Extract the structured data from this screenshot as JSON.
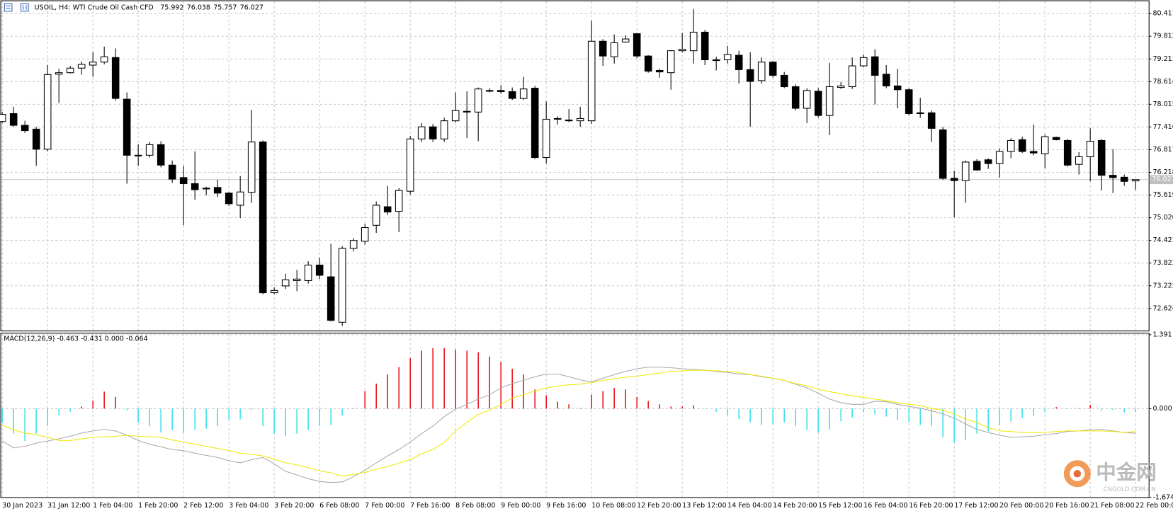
{
  "chart_data": [
    {
      "type": "candlestick",
      "title": "USOIL, H4: WTI Crude Oil Cash CFD",
      "categories": [
        "30 Jan 2023",
        null,
        null,
        null,
        "31 Jan 12:00",
        null,
        null,
        null,
        "1 Feb 04:00",
        null,
        null,
        null,
        "1 Feb 20:00",
        null,
        null,
        null,
        "2 Feb 12:00",
        null,
        null,
        null,
        "3 Feb 04:00",
        null,
        null,
        null,
        "3 Feb 20:00",
        null,
        null,
        null,
        "6 Feb 08:00",
        null,
        null,
        null,
        "7 Feb 00:00",
        null,
        null,
        null,
        "7 Feb 16:00",
        null,
        null,
        null,
        "8 Feb 08:00",
        null,
        null,
        null,
        "9 Feb 00:00",
        null,
        null,
        null,
        "9 Feb 16:00",
        null,
        null,
        null,
        "10 Feb 08:00",
        null,
        null,
        null,
        "12 Feb 20:00",
        null,
        null,
        null,
        "13 Feb 12:00",
        null,
        null,
        null,
        "14 Feb 04:00",
        null,
        null,
        null,
        "14 Feb 20:00",
        null,
        null,
        null,
        "15 Feb 12:00",
        null,
        null,
        null,
        "16 Feb 04:00",
        null,
        null,
        null,
        "16 Feb 20:00",
        null,
        null,
        null,
        "17 Feb 12:00",
        null,
        null,
        null,
        "20 Feb 00:00",
        null,
        null,
        null,
        "20 Feb 16:00",
        null,
        null,
        null,
        "21 Feb 08:00",
        null,
        null,
        null,
        "22 Feb 00:00"
      ],
      "open": [
        77.56,
        77.77,
        77.46,
        77.36,
        76.83,
        78.81,
        78.85,
        78.97,
        79.05,
        79.13,
        79.25,
        78.15,
        76.67,
        76.67,
        76.95,
        76.41,
        76.08,
        75.92,
        75.8,
        75.82,
        75.67,
        75.35,
        75.69,
        77.02,
        73.04,
        73.22,
        73.36,
        73.36,
        73.77,
        73.46,
        72.26,
        74.21,
        74.4,
        74.82,
        75.31,
        75.19,
        75.72,
        77.1,
        77.42,
        77.1,
        77.58,
        77.83,
        77.81,
        78.38,
        78.38,
        78.35,
        78.17,
        78.44,
        76.61,
        77.62,
        77.6,
        77.58,
        77.58,
        79.68,
        79.27,
        79.66,
        79.88,
        79.29,
        78.91,
        78.85,
        79.43,
        79.43,
        79.92,
        79.19,
        79.19,
        79.31,
        78.93,
        78.64,
        79.13,
        78.78,
        78.48,
        77.91,
        78.36,
        77.72,
        78.46,
        78.48,
        79.03,
        79.27,
        78.81,
        78.5,
        78.4,
        77.79,
        77.79,
        77.34,
        76.06,
        76.0,
        76.51,
        76.55,
        76.45,
        76.77,
        77.08,
        76.77,
        76.71,
        77.14,
        77.06,
        76.43,
        76.63,
        77.06,
        76.14,
        76.09,
        75.992
      ],
      "high": [
        77.81,
        77.95,
        77.58,
        77.42,
        79.05,
        78.95,
        79.03,
        79.15,
        79.39,
        79.54,
        79.49,
        78.33,
        76.96,
        77.02,
        77.04,
        76.53,
        76.39,
        76.77,
        75.84,
        76.02,
        75.7,
        76.12,
        77.87,
        77.06,
        73.18,
        73.54,
        73.64,
        73.87,
        73.97,
        74.33,
        74.27,
        74.48,
        74.86,
        75.45,
        75.86,
        75.8,
        77.18,
        77.52,
        77.5,
        77.66,
        78.33,
        78.36,
        78.46,
        78.44,
        78.52,
        78.46,
        78.74,
        78.5,
        78.09,
        77.7,
        77.89,
        77.95,
        80.22,
        79.74,
        79.86,
        79.84,
        79.9,
        79.31,
        78.95,
        79.45,
        79.9,
        80.53,
        79.98,
        79.27,
        79.56,
        79.43,
        79.39,
        79.25,
        79.15,
        78.87,
        78.54,
        78.44,
        78.44,
        79.11,
        78.6,
        79.25,
        79.33,
        79.47,
        79.05,
        78.95,
        78.44,
        78.19,
        77.85,
        77.42,
        76.26,
        76.53,
        76.57,
        76.59,
        76.85,
        77.12,
        77.16,
        77.48,
        77.22,
        77.16,
        77.1,
        76.75,
        77.38,
        77.1,
        76.83,
        76.16,
        76.038
      ],
      "low": [
        77.52,
        77.42,
        77.26,
        76.39,
        76.77,
        78.05,
        78.83,
        78.8,
        78.74,
        79.07,
        78.11,
        75.92,
        76.39,
        76.61,
        76.35,
        75.94,
        74.82,
        75.49,
        75.61,
        75.57,
        75.33,
        75.01,
        75.41,
        73.0,
        73.0,
        73.14,
        73.08,
        73.28,
        73.4,
        72.28,
        72.16,
        74.13,
        74.31,
        74.62,
        75.09,
        74.64,
        75.63,
        77.02,
        77.02,
        77.02,
        77.54,
        77.12,
        77.04,
        78.33,
        78.29,
        78.13,
        78.13,
        76.57,
        76.45,
        77.48,
        77.54,
        77.42,
        77.5,
        79.03,
        79.09,
        79.64,
        79.23,
        78.85,
        78.72,
        78.4,
        79.39,
        79.09,
        79.05,
        78.91,
        79.09,
        78.56,
        77.42,
        78.56,
        78.72,
        78.44,
        77.85,
        77.52,
        77.66,
        77.2,
        78.42,
        78.42,
        78.99,
        78.01,
        78.44,
        77.91,
        77.72,
        77.66,
        77.02,
        76.02,
        75.03,
        75.41,
        76.26,
        76.31,
        76.08,
        76.59,
        76.73,
        76.67,
        76.33,
        77.06,
        76.37,
        76.16,
        75.98,
        75.74,
        75.67,
        75.86,
        75.757
      ],
      "close": [
        77.75,
        77.46,
        77.32,
        76.83,
        78.8,
        78.85,
        78.97,
        79.07,
        79.13,
        79.27,
        78.17,
        76.67,
        76.65,
        76.95,
        76.41,
        76.04,
        75.92,
        75.76,
        75.78,
        75.67,
        75.39,
        75.7,
        77.02,
        73.04,
        73.1,
        73.38,
        73.4,
        73.77,
        73.5,
        72.31,
        74.21,
        74.42,
        74.76,
        75.35,
        75.17,
        75.74,
        77.1,
        77.42,
        77.1,
        77.58,
        77.85,
        77.81,
        78.42,
        78.36,
        78.35,
        78.17,
        78.42,
        76.61,
        77.62,
        77.64,
        77.58,
        77.64,
        79.68,
        79.29,
        79.64,
        79.74,
        79.29,
        78.89,
        78.87,
        79.43,
        79.47,
        79.92,
        79.19,
        79.19,
        79.33,
        78.93,
        78.62,
        79.13,
        78.78,
        78.48,
        77.91,
        78.38,
        77.72,
        78.48,
        78.5,
        79.03,
        79.25,
        78.78,
        78.5,
        78.4,
        77.77,
        77.77,
        77.38,
        76.06,
        76.0,
        76.49,
        76.28,
        76.45,
        76.77,
        77.06,
        76.77,
        76.73,
        77.16,
        77.08,
        76.41,
        76.63,
        77.04,
        76.14,
        76.08,
        75.98,
        76.027
      ],
      "ylim": [
        72.03,
        80.71
      ],
      "yticks": [
        80.411,
        79.812,
        79.213,
        78.614,
        78.015,
        77.416,
        76.817,
        76.218,
        75.619,
        {
          "value": 75.02,
          "label": "75.020"
        },
        74.421,
        73.822,
        73.223,
        72.624
      ],
      "grid": true,
      "up_color": "#ffffff",
      "down_color": "#000000",
      "current_price_color": "#c0c0c0"
    },
    {
      "type": "macd",
      "title": "MACD(12,26,9) -0.463 -0.431 0.000 -0.064",
      "histogram": [
        -0.26,
        -0.47,
        -0.61,
        -0.47,
        -0.33,
        -0.13,
        -0.06,
        0.04,
        0.15,
        0.32,
        0.22,
        -0.03,
        -0.26,
        -0.33,
        -0.45,
        -0.4,
        -0.45,
        -0.4,
        -0.38,
        -0.33,
        -0.22,
        -0.2,
        -0.03,
        -0.33,
        -0.47,
        -0.52,
        -0.47,
        -0.4,
        -0.33,
        -0.31,
        -0.13,
        0.01,
        0.33,
        0.47,
        0.64,
        0.78,
        0.95,
        1.09,
        1.14,
        1.14,
        1.11,
        1.09,
        1.06,
        0.98,
        0.88,
        0.75,
        0.64,
        0.36,
        0.25,
        0.13,
        0.08,
        0.01,
        0.26,
        0.33,
        0.39,
        0.36,
        0.22,
        0.14,
        0.08,
        0.04,
        0.04,
        0.06,
        -0.01,
        -0.06,
        -0.13,
        -0.2,
        -0.26,
        -0.31,
        -0.29,
        -0.26,
        -0.33,
        -0.4,
        -0.45,
        -0.39,
        -0.24,
        -0.17,
        -0.07,
        -0.11,
        -0.15,
        -0.22,
        -0.26,
        -0.31,
        -0.33,
        -0.54,
        -0.64,
        -0.59,
        -0.47,
        -0.43,
        -0.31,
        -0.24,
        -0.17,
        -0.14,
        -0.07,
        0.03,
        -0.01,
        0.01,
        0.07,
        -0.04,
        -0.03,
        -0.07,
        -0.064
      ],
      "histogram_up_color": "#e8141a",
      "histogram_down_color": "#3ee0ea",
      "series": [
        {
          "color": "#a8a8a8",
          "values": [
            -0.61,
            -0.74,
            -0.71,
            -0.65,
            -0.61,
            -0.57,
            -0.52,
            -0.46,
            -0.42,
            -0.39,
            -0.42,
            -0.5,
            -0.6,
            -0.67,
            -0.72,
            -0.77,
            -0.79,
            -0.84,
            -0.88,
            -0.92,
            -0.98,
            -1.02,
            -0.96,
            -0.92,
            -1.04,
            -1.18,
            -1.25,
            -1.32,
            -1.37,
            -1.39,
            -1.38,
            -1.28,
            -1.16,
            -1.02,
            -0.89,
            -0.77,
            -0.63,
            -0.47,
            -0.33,
            -0.15,
            -0.01,
            0.08,
            0.18,
            0.26,
            0.39,
            0.47,
            0.53,
            0.6,
            0.65,
            0.65,
            0.6,
            0.54,
            0.5,
            0.57,
            0.64,
            0.7,
            0.75,
            0.78,
            0.78,
            0.77,
            0.75,
            0.74,
            0.72,
            0.7,
            0.68,
            0.65,
            0.64,
            0.6,
            0.57,
            0.53,
            0.46,
            0.39,
            0.29,
            0.18,
            0.11,
            0.08,
            0.08,
            0.14,
            0.13,
            0.08,
            0.04,
            0.01,
            -0.04,
            -0.1,
            -0.18,
            -0.29,
            -0.39,
            -0.45,
            -0.5,
            -0.54,
            -0.53,
            -0.52,
            -0.49,
            -0.47,
            -0.43,
            -0.42,
            -0.4,
            -0.39,
            -0.42,
            -0.45,
            -0.463
          ]
        },
        {
          "color": "#f0e800",
          "values": [
            -0.31,
            -0.4,
            -0.46,
            -0.49,
            -0.54,
            -0.6,
            -0.6,
            -0.57,
            -0.54,
            -0.53,
            -0.52,
            -0.5,
            -0.52,
            -0.53,
            -0.54,
            -0.59,
            -0.63,
            -0.67,
            -0.71,
            -0.75,
            -0.79,
            -0.84,
            -0.86,
            -0.89,
            -0.95,
            -1.02,
            -1.06,
            -1.11,
            -1.17,
            -1.21,
            -1.27,
            -1.24,
            -1.2,
            -1.14,
            -1.09,
            -1.03,
            -0.96,
            -0.85,
            -0.77,
            -0.64,
            -0.42,
            -0.26,
            -0.11,
            -0.03,
            0.08,
            0.2,
            0.26,
            0.33,
            0.39,
            0.42,
            0.45,
            0.46,
            0.49,
            0.53,
            0.56,
            0.59,
            0.61,
            0.64,
            0.67,
            0.7,
            0.71,
            0.72,
            0.72,
            0.71,
            0.7,
            0.68,
            0.64,
            0.61,
            0.57,
            0.53,
            0.47,
            0.43,
            0.36,
            0.32,
            0.28,
            0.24,
            0.21,
            0.18,
            0.15,
            0.11,
            0.08,
            0.06,
            0.0,
            -0.03,
            -0.1,
            -0.2,
            -0.26,
            -0.36,
            -0.42,
            -0.43,
            -0.45,
            -0.45,
            -0.45,
            -0.43,
            -0.42,
            -0.42,
            -0.42,
            -0.42,
            -0.43,
            -0.45,
            -0.431
          ]
        }
      ],
      "ylim": [
        -1.674,
        1.391
      ],
      "yticks": [
        1.391,
        {
          "value": 0,
          "label": "0.000"
        },
        -1.674
      ],
      "grid": true
    }
  ],
  "watermark": {
    "name": "中金网",
    "site": "CNGOLD.COM.CN"
  }
}
